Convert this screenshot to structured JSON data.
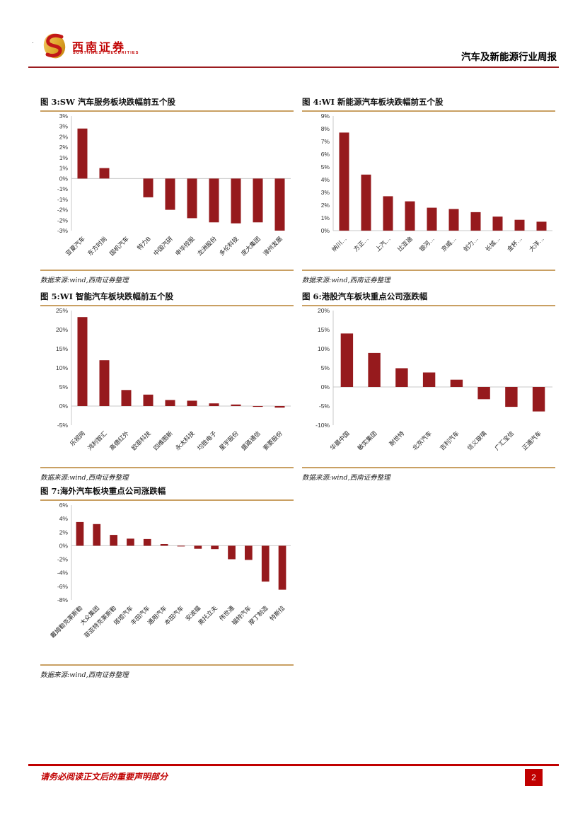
{
  "header": {
    "bullet": "·",
    "logo_cn": "西南证券",
    "logo_en": "SOUTHWEST SECURITIES",
    "report_title": "汽车及新能源行业周报"
  },
  "footer": {
    "disclaimer": "请务必阅读正文后的重要声明部分",
    "page_number": "2"
  },
  "colors": {
    "bar": "#961a1d",
    "gold_line": "#c9a063",
    "header_rule": "#9b1c1f",
    "footer_red": "#c00000",
    "axis_line": "#c9c9c9",
    "tick_text": "#333333"
  },
  "chart_data": [
    {
      "type": "bar",
      "title": "图 3:SW 汽车服务板块跌幅前五个股",
      "source": "数据来源:wind,西南证券整理",
      "categories": [
        "亚夏汽车",
        "东方时尚",
        "国机汽车",
        "特力B",
        "中国汽研",
        "申华控股",
        "龙洲股份",
        "多伦科技",
        "庞大集团",
        "漳州发展"
      ],
      "values": [
        2.4,
        0.5,
        0.0,
        -0.9,
        -1.5,
        -1.9,
        -2.1,
        -2.15,
        -2.1,
        -2.5
      ],
      "ylim": [
        -2.5,
        3.0
      ],
      "grid": false,
      "yticks": [
        {
          "v": 3.0,
          "label": "3%"
        },
        {
          "v": 2.5,
          "label": "3%"
        },
        {
          "v": 2.0,
          "label": "2%"
        },
        {
          "v": 1.5,
          "label": "2%"
        },
        {
          "v": 1.0,
          "label": "1%"
        },
        {
          "v": 0.5,
          "label": "1%"
        },
        {
          "v": 0.0,
          "label": "0%"
        },
        {
          "v": -0.5,
          "label": "-1%"
        },
        {
          "v": -1.0,
          "label": "-1%"
        },
        {
          "v": -1.5,
          "label": "-2%"
        },
        {
          "v": -2.0,
          "label": "-2%"
        },
        {
          "v": -2.5,
          "label": "-3%"
        }
      ]
    },
    {
      "type": "bar",
      "title": "图 4:WI 新能源汽车板块跌幅前五个股",
      "source": "数据来源:wind,西南证券整理",
      "categories": [
        "纳川…",
        "方正…",
        "上汽…",
        "比亚迪",
        "银河…",
        "京威…",
        "创力…",
        "长城…",
        "金杯…",
        "大洋…"
      ],
      "values": [
        7.7,
        4.4,
        2.7,
        2.3,
        1.8,
        1.7,
        1.45,
        1.1,
        0.85,
        0.7
      ],
      "ylim": [
        0,
        9
      ],
      "grid": false,
      "yticks": [
        {
          "v": 9,
          "label": "9%"
        },
        {
          "v": 8,
          "label": "8%"
        },
        {
          "v": 7,
          "label": "7%"
        },
        {
          "v": 6,
          "label": "6%"
        },
        {
          "v": 5,
          "label": "5%"
        },
        {
          "v": 4,
          "label": "4%"
        },
        {
          "v": 3,
          "label": "3%"
        },
        {
          "v": 2,
          "label": "2%"
        },
        {
          "v": 1,
          "label": "1%"
        },
        {
          "v": 0,
          "label": "0%"
        }
      ]
    },
    {
      "type": "bar",
      "title": "图 5:WI 智能汽车板块跌幅前五个股",
      "source": "数据来源:wind,西南证券整理",
      "categories": [
        "乐视网",
        "鸿利智汇",
        "高德红外",
        "欧菲科技",
        "四维图新",
        "永太科技",
        "均胜电子",
        "星宇股份",
        "盛路通信",
        "索菱股份"
      ],
      "values": [
        23.3,
        12.0,
        4.2,
        3.0,
        1.6,
        1.4,
        0.7,
        0.4,
        -0.2,
        -0.4
      ],
      "ylim": [
        -5,
        25
      ],
      "grid": false,
      "yticks": [
        {
          "v": 25,
          "label": "25%"
        },
        {
          "v": 20,
          "label": "20%"
        },
        {
          "v": 15,
          "label": "15%"
        },
        {
          "v": 10,
          "label": "10%"
        },
        {
          "v": 5,
          "label": "5%"
        },
        {
          "v": 0,
          "label": "0%"
        },
        {
          "v": -5,
          "label": "-5%"
        }
      ]
    },
    {
      "type": "bar",
      "title": "图 6:港股汽车板块重点公司涨跌幅",
      "source": "数据来源:wind,西南证券整理",
      "categories": [
        "华晨中国",
        "敏实集团",
        "耐世特",
        "北京汽车",
        "吉利汽车",
        "信义玻璃",
        "广汇宝信",
        "正通汽车"
      ],
      "values": [
        14.0,
        8.9,
        4.9,
        3.8,
        1.9,
        -3.2,
        -5.2,
        -6.4
      ],
      "ylim": [
        -10,
        20
      ],
      "grid": false,
      "yticks": [
        {
          "v": 20,
          "label": "20%"
        },
        {
          "v": 15,
          "label": "15%"
        },
        {
          "v": 10,
          "label": "10%"
        },
        {
          "v": 5,
          "label": "5%"
        },
        {
          "v": 0,
          "label": "0%"
        },
        {
          "v": -5,
          "label": "-5%"
        },
        {
          "v": -10,
          "label": "-10%"
        }
      ]
    },
    {
      "type": "bar",
      "title": "图 7:海外汽车板块重点公司涨跌幅",
      "source": "数据来源:wind,西南证券整理",
      "categories": [
        "戴姆勒克莱斯勒",
        "大众集团",
        "菲亚特克莱斯勒",
        "塔塔汽车",
        "丰田汽车",
        "通用汽车",
        "本田汽车",
        "安波福",
        "奥托立夫",
        "伟世通",
        "福特汽车",
        "摩丁制造",
        "特斯拉"
      ],
      "values": [
        3.5,
        3.2,
        1.6,
        1.05,
        1.0,
        0.25,
        -0.1,
        -0.45,
        -0.5,
        -2.0,
        -2.1,
        -5.3,
        -6.5
      ],
      "ylim": [
        -8,
        6
      ],
      "grid": false,
      "yticks": [
        {
          "v": 6,
          "label": "6%"
        },
        {
          "v": 4,
          "label": "4%"
        },
        {
          "v": 2,
          "label": "2%"
        },
        {
          "v": 0,
          "label": "0%"
        },
        {
          "v": -2,
          "label": "-2%"
        },
        {
          "v": -4,
          "label": "-4%"
        },
        {
          "v": -6,
          "label": "-6%"
        },
        {
          "v": -8,
          "label": "-8%"
        }
      ]
    }
  ]
}
